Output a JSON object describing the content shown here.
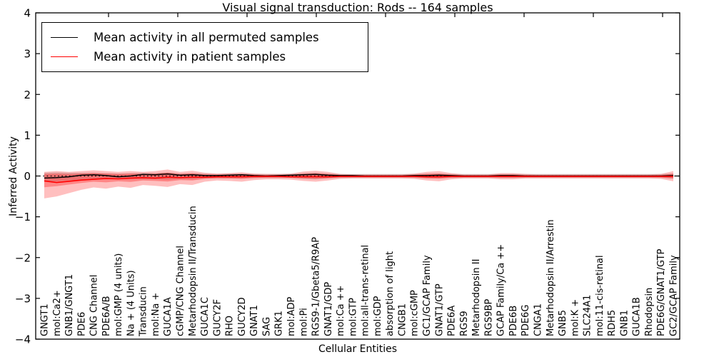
{
  "chart_data": {
    "type": "line",
    "title": "Visual signal transduction: Rods -- 164 samples",
    "xlabel": "Cellular Entities",
    "ylabel": "Inferred Activity",
    "ylim": [
      -4,
      4
    ],
    "yticks": [
      "4",
      "3",
      "2",
      "1",
      "0",
      "−1",
      "−2",
      "−3",
      "−4"
    ],
    "ytick_values": [
      4,
      3,
      2,
      1,
      0,
      -1,
      -2,
      -3,
      -4
    ],
    "grid": false,
    "legend_position": "upper left",
    "reference_line": {
      "y": 0,
      "style": "dotted",
      "color": "#000000"
    },
    "categories": [
      "GNGT1",
      "mol:Ca2+",
      "GNB1/GNGT1",
      "PDE6",
      "CNG Channel",
      "PDE6A/B",
      "mol:GMP (4 units)",
      "Na + (4 Units)",
      "Transducin",
      "mol:Na +",
      "GUCA1A",
      "cGMP/CNG Channel",
      "Metarhodopsin II/Transducin",
      "GUCA1C",
      "GUCY2F",
      "RHO",
      "GUCY2D",
      "GNAT1",
      "SAG",
      "GRK1",
      "mol:ADP",
      "mol:Pi",
      "RGS9-1/Gbeta5/R9AP",
      "GNAT1/GDP",
      "mol:Ca ++",
      "mol:GTP",
      "mol:all-trans-retinal",
      "mol:GDP",
      "absorption of light",
      "CNGB1",
      "mol:cGMP",
      "GC1/GCAP Family",
      "GNAT1/GTP",
      "PDE6A",
      "RGS9",
      "Metarhodopsin II",
      "RGS9BP",
      "GCAP Family/Ca ++",
      "PDE6B",
      "PDE6G",
      "CNGA1",
      "Metarhodopsin II/Arrestin",
      "GNB5",
      "mol:K +",
      "SLC24A1",
      "mol:11-cis-retinal",
      "RDH5",
      "GNB1",
      "GUCA1B",
      "Rhodopsin",
      "PDE6G/GNAT1/GTP",
      "GC2/GCAP Family"
    ],
    "series": [
      {
        "name": "Mean activity in all permuted samples",
        "color": "#000000",
        "band_color": "rgba(0,0,0,0.15)",
        "values": [
          -0.05,
          -0.04,
          -0.02,
          0.02,
          0.03,
          0.01,
          -0.02,
          0.0,
          0.04,
          0.03,
          0.05,
          0.02,
          0.03,
          0.01,
          0.01,
          0.02,
          0.03,
          0.01,
          0.0,
          0.01,
          0.02,
          0.03,
          0.04,
          0.02,
          0.01,
          0.01,
          0.0,
          0.0,
          0.0,
          0.0,
          0.01,
          0.01,
          0.02,
          0.01,
          0.0,
          0.0,
          0.0,
          0.01,
          0.01,
          0.0,
          0.0,
          0.0,
          0.0,
          0.0,
          0.0,
          0.0,
          0.0,
          0.0,
          0.0,
          0.0,
          0.0,
          0.01
        ],
        "band_upper": [
          0.08,
          0.09,
          0.08,
          0.08,
          0.08,
          0.07,
          0.06,
          0.07,
          0.08,
          0.07,
          0.09,
          0.06,
          0.07,
          0.06,
          0.05,
          0.06,
          0.06,
          0.05,
          0.05,
          0.05,
          0.05,
          0.07,
          0.08,
          0.06,
          0.05,
          0.05,
          0.05,
          0.05,
          0.05,
          0.05,
          0.05,
          0.06,
          0.06,
          0.05,
          0.05,
          0.05,
          0.05,
          0.05,
          0.05,
          0.05,
          0.05,
          0.05,
          0.05,
          0.05,
          0.05,
          0.05,
          0.05,
          0.05,
          0.05,
          0.05,
          0.05,
          0.06
        ],
        "band_lower": [
          -0.14,
          -0.13,
          -0.11,
          -0.1,
          -0.09,
          -0.08,
          -0.08,
          -0.08,
          -0.08,
          -0.08,
          -0.09,
          -0.07,
          -0.08,
          -0.06,
          -0.06,
          -0.06,
          -0.06,
          -0.05,
          -0.05,
          -0.05,
          -0.05,
          -0.07,
          -0.08,
          -0.06,
          -0.05,
          -0.05,
          -0.05,
          -0.05,
          -0.05,
          -0.05,
          -0.05,
          -0.06,
          -0.06,
          -0.05,
          -0.05,
          -0.05,
          -0.05,
          -0.05,
          -0.05,
          -0.05,
          -0.05,
          -0.05,
          -0.05,
          -0.05,
          -0.05,
          -0.05,
          -0.05,
          -0.05,
          -0.05,
          -0.05,
          -0.05,
          -0.06
        ]
      },
      {
        "name": "Mean activity in patient samples",
        "color": "#ff0000",
        "band_color": "rgba(255,0,0,0.25)",
        "values": [
          -0.12,
          -0.16,
          -0.13,
          -0.1,
          -0.08,
          -0.06,
          -0.07,
          -0.05,
          -0.04,
          -0.05,
          -0.03,
          -0.04,
          -0.03,
          -0.03,
          -0.02,
          -0.02,
          -0.02,
          -0.01,
          -0.01,
          -0.01,
          -0.02,
          -0.02,
          -0.02,
          -0.02,
          -0.01,
          -0.01,
          -0.01,
          -0.01,
          -0.01,
          -0.01,
          -0.01,
          -0.02,
          -0.02,
          -0.01,
          -0.01,
          -0.01,
          -0.01,
          -0.01,
          -0.01,
          -0.01,
          -0.01,
          -0.01,
          -0.01,
          -0.01,
          -0.01,
          -0.01,
          -0.01,
          -0.01,
          -0.01,
          -0.01,
          -0.01,
          -0.01
        ],
        "band_upper": [
          0.1,
          0.12,
          0.1,
          0.12,
          0.14,
          0.12,
          0.1,
          0.12,
          0.1,
          0.12,
          0.16,
          0.1,
          0.13,
          0.08,
          0.06,
          0.07,
          0.09,
          0.06,
          0.05,
          0.05,
          0.06,
          0.11,
          0.13,
          0.1,
          0.05,
          0.04,
          0.04,
          0.04,
          0.04,
          0.04,
          0.06,
          0.1,
          0.12,
          0.07,
          0.04,
          0.04,
          0.04,
          0.07,
          0.07,
          0.05,
          0.04,
          0.04,
          0.04,
          0.04,
          0.04,
          0.04,
          0.04,
          0.04,
          0.04,
          0.04,
          0.05,
          0.12
        ],
        "band_lower": [
          -0.55,
          -0.5,
          -0.42,
          -0.34,
          -0.28,
          -0.31,
          -0.26,
          -0.29,
          -0.22,
          -0.24,
          -0.27,
          -0.2,
          -0.22,
          -0.14,
          -0.11,
          -0.12,
          -0.14,
          -0.1,
          -0.08,
          -0.08,
          -0.09,
          -0.12,
          -0.14,
          -0.11,
          -0.07,
          -0.06,
          -0.06,
          -0.06,
          -0.06,
          -0.06,
          -0.07,
          -0.11,
          -0.13,
          -0.08,
          -0.06,
          -0.06,
          -0.06,
          -0.08,
          -0.08,
          -0.06,
          -0.06,
          -0.06,
          -0.06,
          -0.06,
          -0.06,
          -0.06,
          -0.06,
          -0.06,
          -0.06,
          -0.06,
          -0.07,
          -0.13
        ]
      }
    ]
  }
}
